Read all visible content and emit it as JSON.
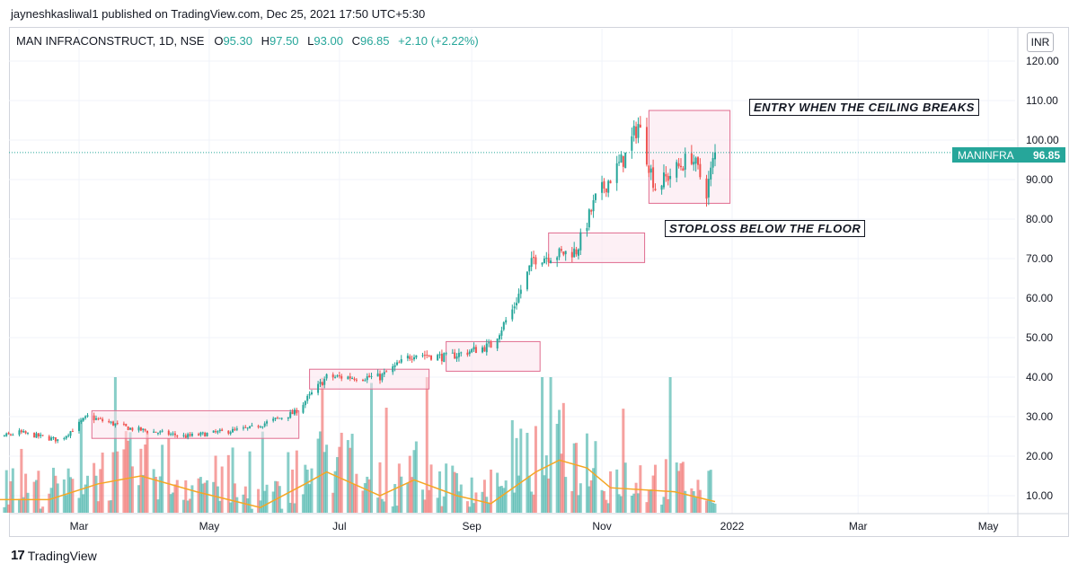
{
  "header": {
    "publisher": "jayneshkasliwal1 published on TradingView.com, Dec 25, 2021 17:50 UTC+5:30"
  },
  "legend": {
    "symbol": "MAN INFRACONSTRUCT, 1D, NSE",
    "open_label": "O",
    "open": "95.30",
    "high_label": "H",
    "high": "97.50",
    "low_label": "L",
    "low": "93.00",
    "close_label": "C",
    "close": "96.85",
    "change": "+2.10 (+2.22%)"
  },
  "currency": "INR",
  "price_tag": {
    "symbol": "MANINFRA",
    "value": "96.85"
  },
  "annotations": {
    "entry": "ENTRY WHEN THE CEILING BREAKS",
    "stoploss": "STOPLOSS BELOW THE FLOOR"
  },
  "footer": {
    "brand": "TradingView",
    "logo": "17"
  },
  "colors": {
    "up": "#26a69a",
    "down": "#ef5350",
    "ma": "#f5a623",
    "box_fill": "#fce4ec",
    "box_stroke": "#e06c8f",
    "last_line": "#26a69a"
  },
  "chart_data": {
    "type": "candlestick",
    "x_axis_ticks": [
      "Mar",
      "May",
      "Jul",
      "Sep",
      "Nov",
      "2022",
      "Mar",
      "May"
    ],
    "y_axis_ticks": [
      "10.00",
      "20.00",
      "30.00",
      "40.00",
      "50.00",
      "60.00",
      "70.00",
      "80.00",
      "90.00",
      "100.00",
      "110.00",
      "120.00"
    ],
    "ylim": [
      4,
      125
    ],
    "last_price": 96.85,
    "price_path": [
      {
        "date": "2021-01-08",
        "close": 23
      },
      {
        "date": "2021-02-01",
        "close": 26
      },
      {
        "date": "2021-02-20",
        "close": 24
      },
      {
        "date": "2021-03-05",
        "close": 30
      },
      {
        "date": "2021-03-25",
        "close": 27
      },
      {
        "date": "2021-04-20",
        "close": 25
      },
      {
        "date": "2021-05-20",
        "close": 27
      },
      {
        "date": "2021-06-10",
        "close": 31
      },
      {
        "date": "2021-06-25",
        "close": 40
      },
      {
        "date": "2021-07-20",
        "close": 40
      },
      {
        "date": "2021-08-05",
        "close": 46
      },
      {
        "date": "2021-08-20",
        "close": 45
      },
      {
        "date": "2021-09-10",
        "close": 48
      },
      {
        "date": "2021-09-20",
        "close": 57
      },
      {
        "date": "2021-09-30",
        "close": 70
      },
      {
        "date": "2021-10-20",
        "close": 72
      },
      {
        "date": "2021-10-29",
        "close": 85
      },
      {
        "date": "2021-11-12",
        "close": 96
      },
      {
        "date": "2021-11-18",
        "close": 104
      },
      {
        "date": "2021-11-26",
        "close": 88
      },
      {
        "date": "2021-12-13",
        "close": 96
      },
      {
        "date": "2021-12-20",
        "close": 87
      },
      {
        "date": "2021-12-24",
        "close": 96.85
      }
    ],
    "consolidation_zones": [
      {
        "start": "2021-01-01",
        "end": "2021-01-14",
        "low": 20,
        "high": 24
      },
      {
        "start": "2021-03-07",
        "end": "2021-06-12",
        "low": 24.5,
        "high": 31.5
      },
      {
        "start": "2021-06-17",
        "end": "2021-08-12",
        "low": 37,
        "high": 42
      },
      {
        "start": "2021-08-20",
        "end": "2021-10-03",
        "low": 41.5,
        "high": 49
      },
      {
        "start": "2021-10-07",
        "end": "2021-11-21",
        "low": 69,
        "high": 76.5
      },
      {
        "start": "2021-11-23",
        "end": "2021-12-31",
        "low": 84,
        "high": 107.5
      }
    ],
    "volume_ma": [
      {
        "date": "2021-01-01",
        "value": 9
      },
      {
        "date": "2021-02-15",
        "value": 9
      },
      {
        "date": "2021-03-10",
        "value": 13
      },
      {
        "date": "2021-03-30",
        "value": 15
      },
      {
        "date": "2021-04-25",
        "value": 11
      },
      {
        "date": "2021-05-25",
        "value": 7
      },
      {
        "date": "2021-06-15",
        "value": 13
      },
      {
        "date": "2021-06-25",
        "value": 16
      },
      {
        "date": "2021-07-20",
        "value": 10
      },
      {
        "date": "2021-08-05",
        "value": 14
      },
      {
        "date": "2021-08-25",
        "value": 10
      },
      {
        "date": "2021-09-10",
        "value": 8
      },
      {
        "date": "2021-10-01",
        "value": 16
      },
      {
        "date": "2021-10-12",
        "value": 19
      },
      {
        "date": "2021-10-25",
        "value": 17
      },
      {
        "date": "2021-11-05",
        "value": 12
      },
      {
        "date": "2021-12-05",
        "value": 11
      },
      {
        "date": "2021-12-24",
        "value": 8.5
      }
    ]
  }
}
